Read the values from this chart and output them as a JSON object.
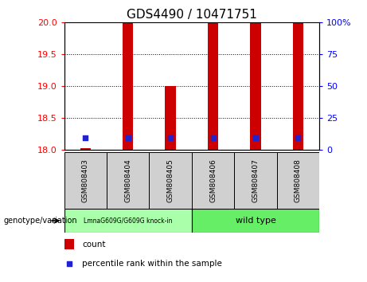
{
  "title": "GDS4490 / 10471751",
  "samples": [
    "GSM808403",
    "GSM808404",
    "GSM808405",
    "GSM808406",
    "GSM808407",
    "GSM808408"
  ],
  "count_values": [
    18.02,
    20.0,
    19.0,
    20.0,
    20.0,
    20.0
  ],
  "percentile_values": [
    18.18,
    18.18,
    18.18,
    18.18,
    18.18,
    18.18
  ],
  "ylim_left": [
    18,
    20
  ],
  "ylim_right": [
    0,
    100
  ],
  "yticks_left": [
    18,
    18.5,
    19,
    19.5,
    20
  ],
  "yticks_right": [
    0,
    25,
    50,
    75,
    100
  ],
  "bar_bottom": 18,
  "bar_color": "#cc0000",
  "blue_color": "#2222cc",
  "group1_label": "LmnaG609G/G609G knock-in",
  "group2_label": "wild type",
  "group1_color": "#aaffaa",
  "group2_color": "#66ee66",
  "group_bg_color": "#d0d0d0",
  "legend_count_label": "count",
  "legend_pct_label": "percentile rank within the sample",
  "genotype_label": "genotype/variation",
  "title_fontsize": 11,
  "bar_width": 0.25,
  "blue_square_size": 18
}
